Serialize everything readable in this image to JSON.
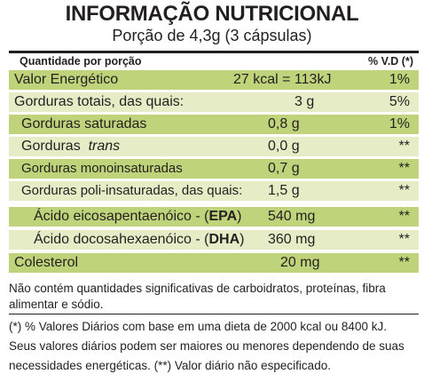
{
  "header": {
    "title": "INFORMAÇÃO NUTRICIONAL",
    "serving": "Porção de 4,3g (3 cápsulas)"
  },
  "table": {
    "col_quantity": "Quantidade por porção",
    "col_vd": "% V.D (*)",
    "rows": [
      {
        "label": "Valor Energético",
        "amount": "27 kcal = 113kJ",
        "vd": "1%"
      },
      {
        "label": "Gorduras totais, das quais:",
        "amount": "3 g",
        "vd": "5%"
      },
      {
        "label": "Gorduras saturadas",
        "amount": "0,8 g",
        "vd": "1%"
      },
      {
        "label": "Gorduras",
        "label_italic": "trans",
        "amount": "0,0 g",
        "vd": "**"
      },
      {
        "label": "Gorduras monoinsaturadas",
        "amount": "0,7 g",
        "vd": "**"
      },
      {
        "label": "Gorduras poli-insaturadas, das quais:",
        "amount": "1,5 g",
        "vd": "**"
      },
      {
        "label": "Ácido eicosapentaenóico - (",
        "label_bold": "EPA",
        "label_end": ")",
        "amount": "540 mg",
        "vd": "**"
      },
      {
        "label": "Ácido docosahexaenóico - (",
        "label_bold": "DHA",
        "label_end": ")",
        "amount": "360 mg",
        "vd": "**"
      },
      {
        "label": "Colesterol",
        "amount": "20 mg",
        "vd": "**"
      }
    ]
  },
  "footnotes": {
    "line1": "Não contém quantidades significativas de carboidratos, proteínas, fibra",
    "line2": "alimentar e sódio.",
    "line3": "(*) % Valores Diários com base em uma dieta de 2000 kcal ou 8400 kJ.",
    "line4": "Seus valores diários podem ser maiores ou menores dependendo de suas",
    "line5": "necessidades energéticas. (**) Valor diário não especificado."
  },
  "colors": {
    "row_green": "#bfd47a",
    "row_pale": "#e6edc6",
    "text": "#231f20"
  }
}
